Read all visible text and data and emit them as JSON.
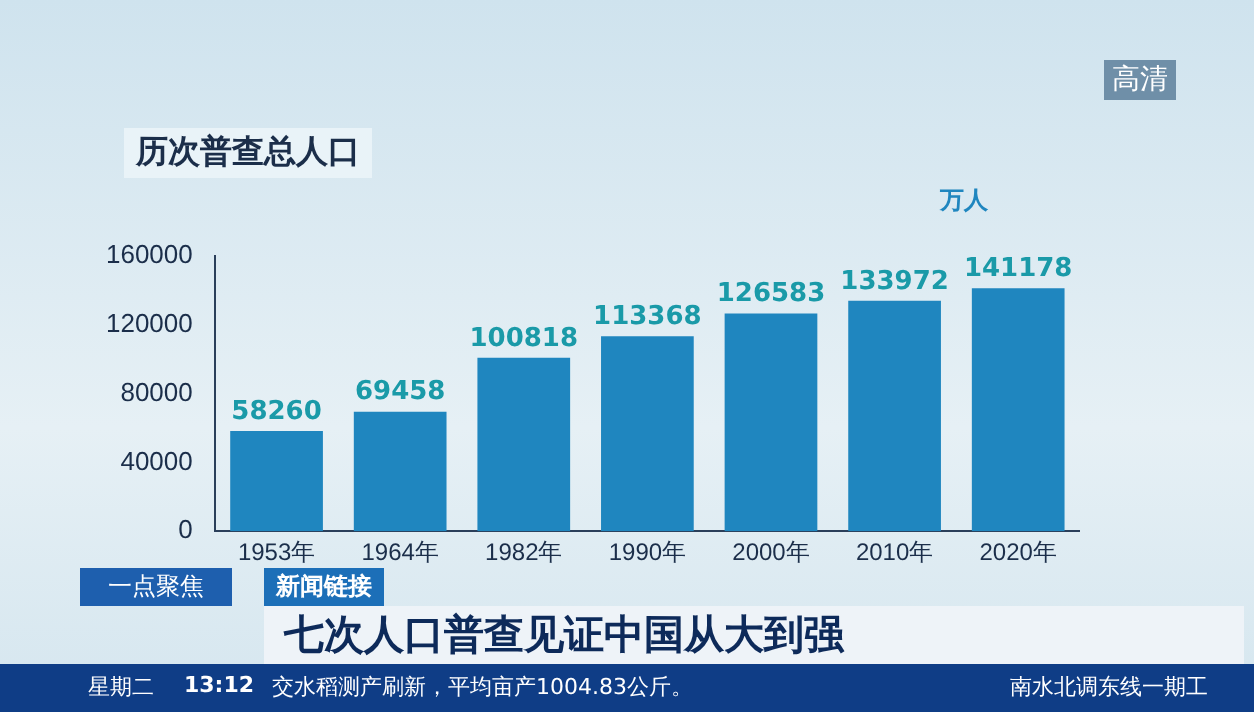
{
  "chart_data": {
    "type": "bar",
    "title": "历次普查总人口",
    "categories": [
      "1953年",
      "1964年",
      "1982年",
      "1990年",
      "2000年",
      "2010年",
      "2020年"
    ],
    "values": [
      58260,
      69458,
      100818,
      113368,
      126583,
      133972,
      141178
    ],
    "color": "#1f86bf",
    "ylim": [
      0,
      160000
    ],
    "yticks": [
      0,
      40000,
      80000,
      120000,
      160000
    ],
    "grid": false,
    "legend": false,
    "data_labels": true,
    "annotations": [
      "万人",
      "一点聚焦",
      "新闻链接",
      "七次人口普查见证中国从大到强",
      "星期二",
      "13:12",
      "交水稻测产刷新，平均亩产1004.83公斤。",
      "南水北调东线一期工",
      "高清"
    ]
  }
}
